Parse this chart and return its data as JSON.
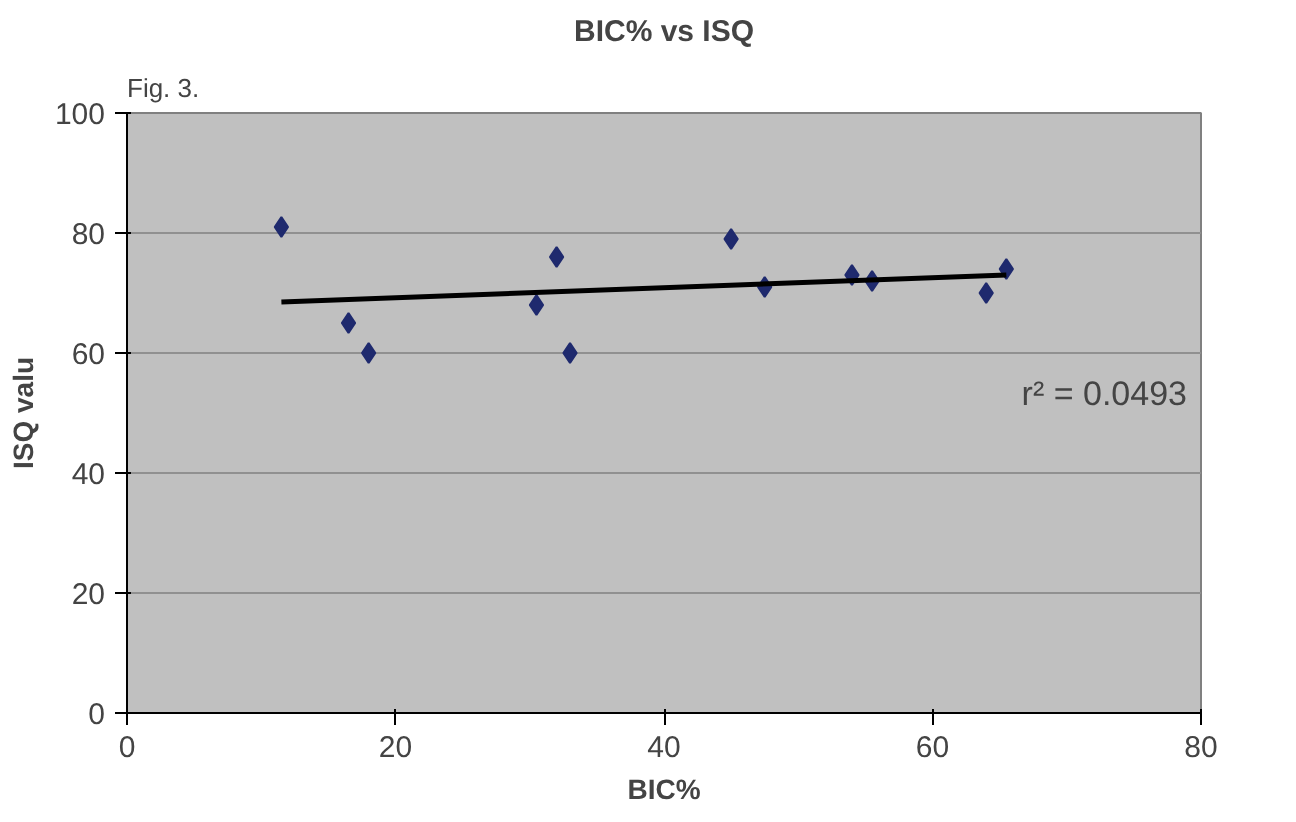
{
  "chart_data": {
    "type": "scatter",
    "title": "BIC% vs ISQ",
    "xlabel": "BIC%",
    "ylabel": "ISQ valu",
    "xlim": [
      0,
      80
    ],
    "xticks": [
      0,
      20,
      40,
      60,
      80
    ],
    "ylim": [
      0,
      100
    ],
    "yticks": [
      0,
      20,
      40,
      60,
      80,
      100
    ],
    "grid": "y",
    "series": [
      {
        "marker": "diamond",
        "color": "#1f2a6e",
        "x": [
          11.5,
          16.5,
          18,
          30.5,
          32,
          33,
          45,
          47.5,
          54,
          55.5,
          64,
          65.5
        ],
        "values": [
          81,
          65,
          60,
          68,
          76,
          60,
          79,
          71,
          73,
          72,
          70,
          74
        ]
      },
      {
        "type": "line",
        "color": "#000000",
        "x": [
          11.5,
          65.5
        ],
        "values": [
          68.5,
          73
        ]
      }
    ],
    "annotations": [
      "Fig. 3.",
      "r² = 0.0493"
    ]
  }
}
